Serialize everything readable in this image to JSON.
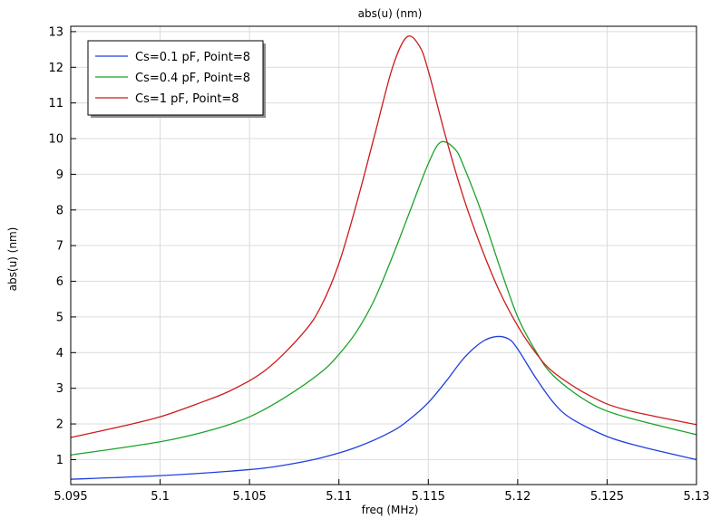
{
  "chart_data": {
    "type": "line",
    "title": "abs(u) (nm)",
    "xlabel": "freq (MHz)",
    "ylabel": "abs(u) (nm)",
    "xlim": [
      5.095,
      5.13
    ],
    "ylim": [
      0.3,
      13.15
    ],
    "x_ticks": [
      5.095,
      5.1,
      5.105,
      5.11,
      5.115,
      5.12,
      5.125,
      5.13
    ],
    "x_tick_labels": [
      "5.095",
      "5.1",
      "5.105",
      "5.11",
      "5.115",
      "5.12",
      "5.125",
      "5.13"
    ],
    "y_ticks": [
      1,
      2,
      3,
      4,
      5,
      6,
      7,
      8,
      9,
      10,
      11,
      12,
      13
    ],
    "y_tick_labels": [
      "1",
      "2",
      "3",
      "4",
      "5",
      "6",
      "7",
      "8",
      "9",
      "10",
      "11",
      "12",
      "13"
    ],
    "grid": true,
    "legend_position": "top-left",
    "series": [
      {
        "name": "Cs=0.1 pF, Point=8",
        "color": "#1f3fe0",
        "x": [
          5.095,
          5.1,
          5.105,
          5.107,
          5.109,
          5.111,
          5.113,
          5.114,
          5.115,
          5.116,
          5.117,
          5.118,
          5.1188,
          5.1195,
          5.12,
          5.121,
          5.122,
          5.123,
          5.125,
          5.127,
          5.13
        ],
        "y": [
          0.45,
          0.55,
          0.72,
          0.85,
          1.05,
          1.35,
          1.8,
          2.15,
          2.6,
          3.2,
          3.85,
          4.3,
          4.45,
          4.38,
          4.1,
          3.3,
          2.6,
          2.15,
          1.65,
          1.35,
          1.0
        ]
      },
      {
        "name": "Cs=0.4 pF, Point=8",
        "color": "#1aa32a",
        "x": [
          5.095,
          5.1,
          5.103,
          5.105,
          5.107,
          5.109,
          5.11,
          5.111,
          5.112,
          5.113,
          5.114,
          5.115,
          5.1157,
          5.1165,
          5.117,
          5.118,
          5.119,
          5.12,
          5.121,
          5.122,
          5.124,
          5.126,
          5.13
        ],
        "y": [
          1.13,
          1.5,
          1.85,
          2.2,
          2.75,
          3.45,
          3.95,
          4.6,
          5.5,
          6.7,
          8.0,
          9.3,
          9.9,
          9.7,
          9.2,
          7.9,
          6.4,
          5.0,
          4.05,
          3.35,
          2.6,
          2.2,
          1.7
        ]
      },
      {
        "name": "Cs=1 pF, Point=8",
        "color": "#cc1a1a",
        "x": [
          5.095,
          5.098,
          5.1,
          5.102,
          5.104,
          5.106,
          5.108,
          5.109,
          5.11,
          5.111,
          5.112,
          5.113,
          5.1138,
          5.1145,
          5.115,
          5.116,
          5.117,
          5.118,
          5.119,
          5.12,
          5.121,
          5.122,
          5.124,
          5.126,
          5.13
        ],
        "y": [
          1.62,
          1.95,
          2.2,
          2.55,
          2.95,
          3.55,
          4.55,
          5.3,
          6.5,
          8.2,
          10.1,
          12.0,
          12.85,
          12.6,
          11.9,
          10.0,
          8.3,
          6.9,
          5.7,
          4.75,
          4.0,
          3.45,
          2.8,
          2.4,
          1.98
        ]
      }
    ]
  }
}
